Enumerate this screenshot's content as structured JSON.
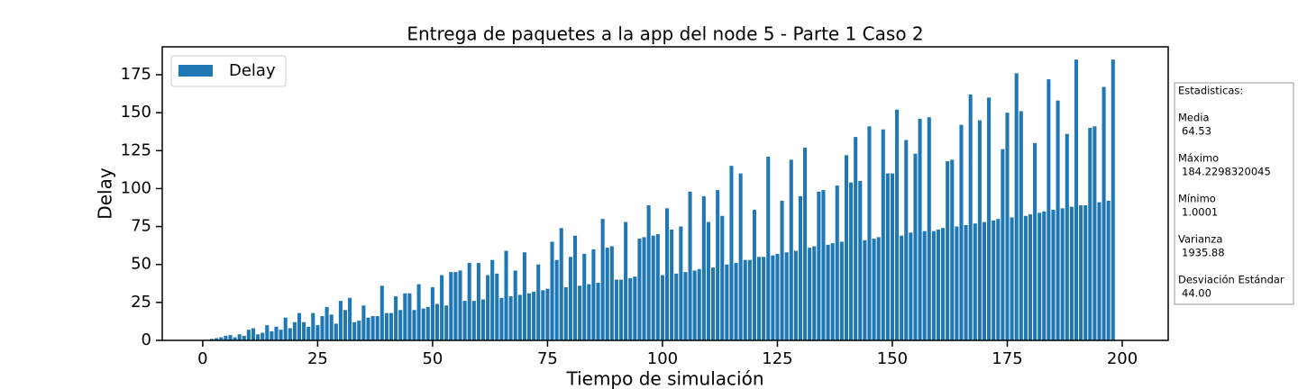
{
  "chart_data": {
    "type": "bar",
    "title": "Entrega de paquetes a la app del node 5 - Parte 1 Caso 2",
    "xlabel": "Tiempo de simulación",
    "ylabel": "Delay",
    "x": [
      2,
      3,
      4,
      5,
      6,
      7,
      8,
      9,
      10,
      11,
      12,
      13,
      14,
      15,
      16,
      17,
      18,
      19,
      20,
      21,
      22,
      23,
      24,
      25,
      26,
      27,
      28,
      29,
      30,
      31,
      32,
      33,
      34,
      35,
      36,
      37,
      38,
      39,
      40,
      41,
      42,
      43,
      44,
      45,
      46,
      47,
      48,
      49,
      50,
      51,
      52,
      53,
      54,
      55,
      56,
      57,
      58,
      59,
      60,
      61,
      62,
      63,
      64,
      65,
      66,
      67,
      68,
      69,
      70,
      71,
      72,
      73,
      74,
      75,
      76,
      77,
      78,
      79,
      80,
      81,
      82,
      83,
      84,
      85,
      86,
      87,
      88,
      89,
      90,
      91,
      92,
      93,
      94,
      95,
      96,
      97,
      98,
      99,
      100,
      101,
      102,
      103,
      104,
      105,
      106,
      107,
      108,
      109,
      110,
      111,
      112,
      113,
      114,
      115,
      116,
      117,
      118,
      119,
      120,
      121,
      122,
      123,
      124,
      125,
      126,
      127,
      128,
      129,
      130,
      131,
      132,
      133,
      134,
      135,
      136,
      137,
      138,
      139,
      140,
      141,
      142,
      143,
      144,
      145,
      146,
      147,
      148,
      149,
      150,
      151,
      152,
      153,
      154,
      155,
      156,
      157,
      158,
      159,
      160,
      161,
      162,
      163,
      164,
      165,
      166,
      167,
      168,
      169,
      170,
      171,
      172,
      173,
      174,
      175,
      176,
      177,
      178,
      179,
      180,
      181,
      182,
      183,
      184,
      185,
      186,
      187,
      188,
      189,
      190,
      191,
      192,
      193,
      194,
      195,
      196,
      197,
      198
    ],
    "series": [
      {
        "name": "Delay",
        "color": "#1f77b4",
        "values": [
          1,
          1.5,
          2,
          3,
          3.5,
          2,
          4,
          3,
          7,
          8,
          4,
          5,
          10,
          6,
          9,
          7,
          15,
          8,
          12,
          18,
          12,
          9,
          18,
          10,
          16,
          22,
          17,
          11,
          26,
          20,
          28,
          12,
          13,
          23,
          15,
          16,
          16,
          36,
          18,
          18,
          29,
          20,
          31,
          31,
          20,
          37,
          21,
          22,
          35,
          24,
          43,
          23,
          45,
          45,
          46,
          26,
          51,
          26,
          51,
          27,
          43,
          53,
          44,
          28,
          59,
          29,
          46,
          30,
          58,
          31,
          32,
          50,
          33,
          34,
          65,
          53,
          74,
          35,
          55,
          69,
          36,
          57,
          37,
          60,
          38,
          80,
          61,
          62,
          40,
          40,
          78,
          41,
          42,
          67,
          68,
          89,
          69,
          70,
          43,
          87,
          73,
          44,
          75,
          45,
          98,
          46,
          47,
          95,
          78,
          48,
          99,
          82,
          50,
          115,
          51,
          110,
          53,
          53,
          86,
          55,
          55,
          121,
          56,
          57,
          92,
          58,
          119,
          59,
          95,
          127,
          61,
          62,
          98,
          99,
          63,
          64,
          102,
          65,
          122,
          104,
          134,
          105,
          66,
          141,
          67,
          68,
          139,
          110,
          110,
          152,
          69,
          132,
          71,
          123,
          146,
          72,
          147,
          72,
          73,
          74,
          118,
          119,
          75,
          142,
          76,
          162,
          77,
          145,
          78,
          160,
          79,
          80,
          126,
          150,
          81,
          176,
          151,
          82,
          83,
          130,
          84,
          85,
          172,
          86,
          158,
          87,
          136,
          88,
          185,
          89,
          89,
          140,
          141,
          91,
          167,
          92,
          185
        ]
      }
    ],
    "xlim": [
      -8.8,
      210
    ],
    "ylim": [
      0,
      193.4
    ],
    "xticks": [
      0,
      25,
      50,
      75,
      100,
      125,
      150,
      175,
      200
    ],
    "yticks": [
      0,
      25,
      50,
      75,
      100,
      125,
      150,
      175
    ],
    "legend": "upper left"
  },
  "stats_box": {
    "title": "Estadisticas:",
    "items": [
      {
        "label": "Media",
        "value": "64.53"
      },
      {
        "label": "Máximo",
        "value": "184.2298320045"
      },
      {
        "label": "Mínimo",
        "value": "1.0001"
      },
      {
        "label": "Varianza",
        "value": "1935.88"
      },
      {
        "label": "Desviación Estándar",
        "value": "44.00"
      }
    ]
  }
}
